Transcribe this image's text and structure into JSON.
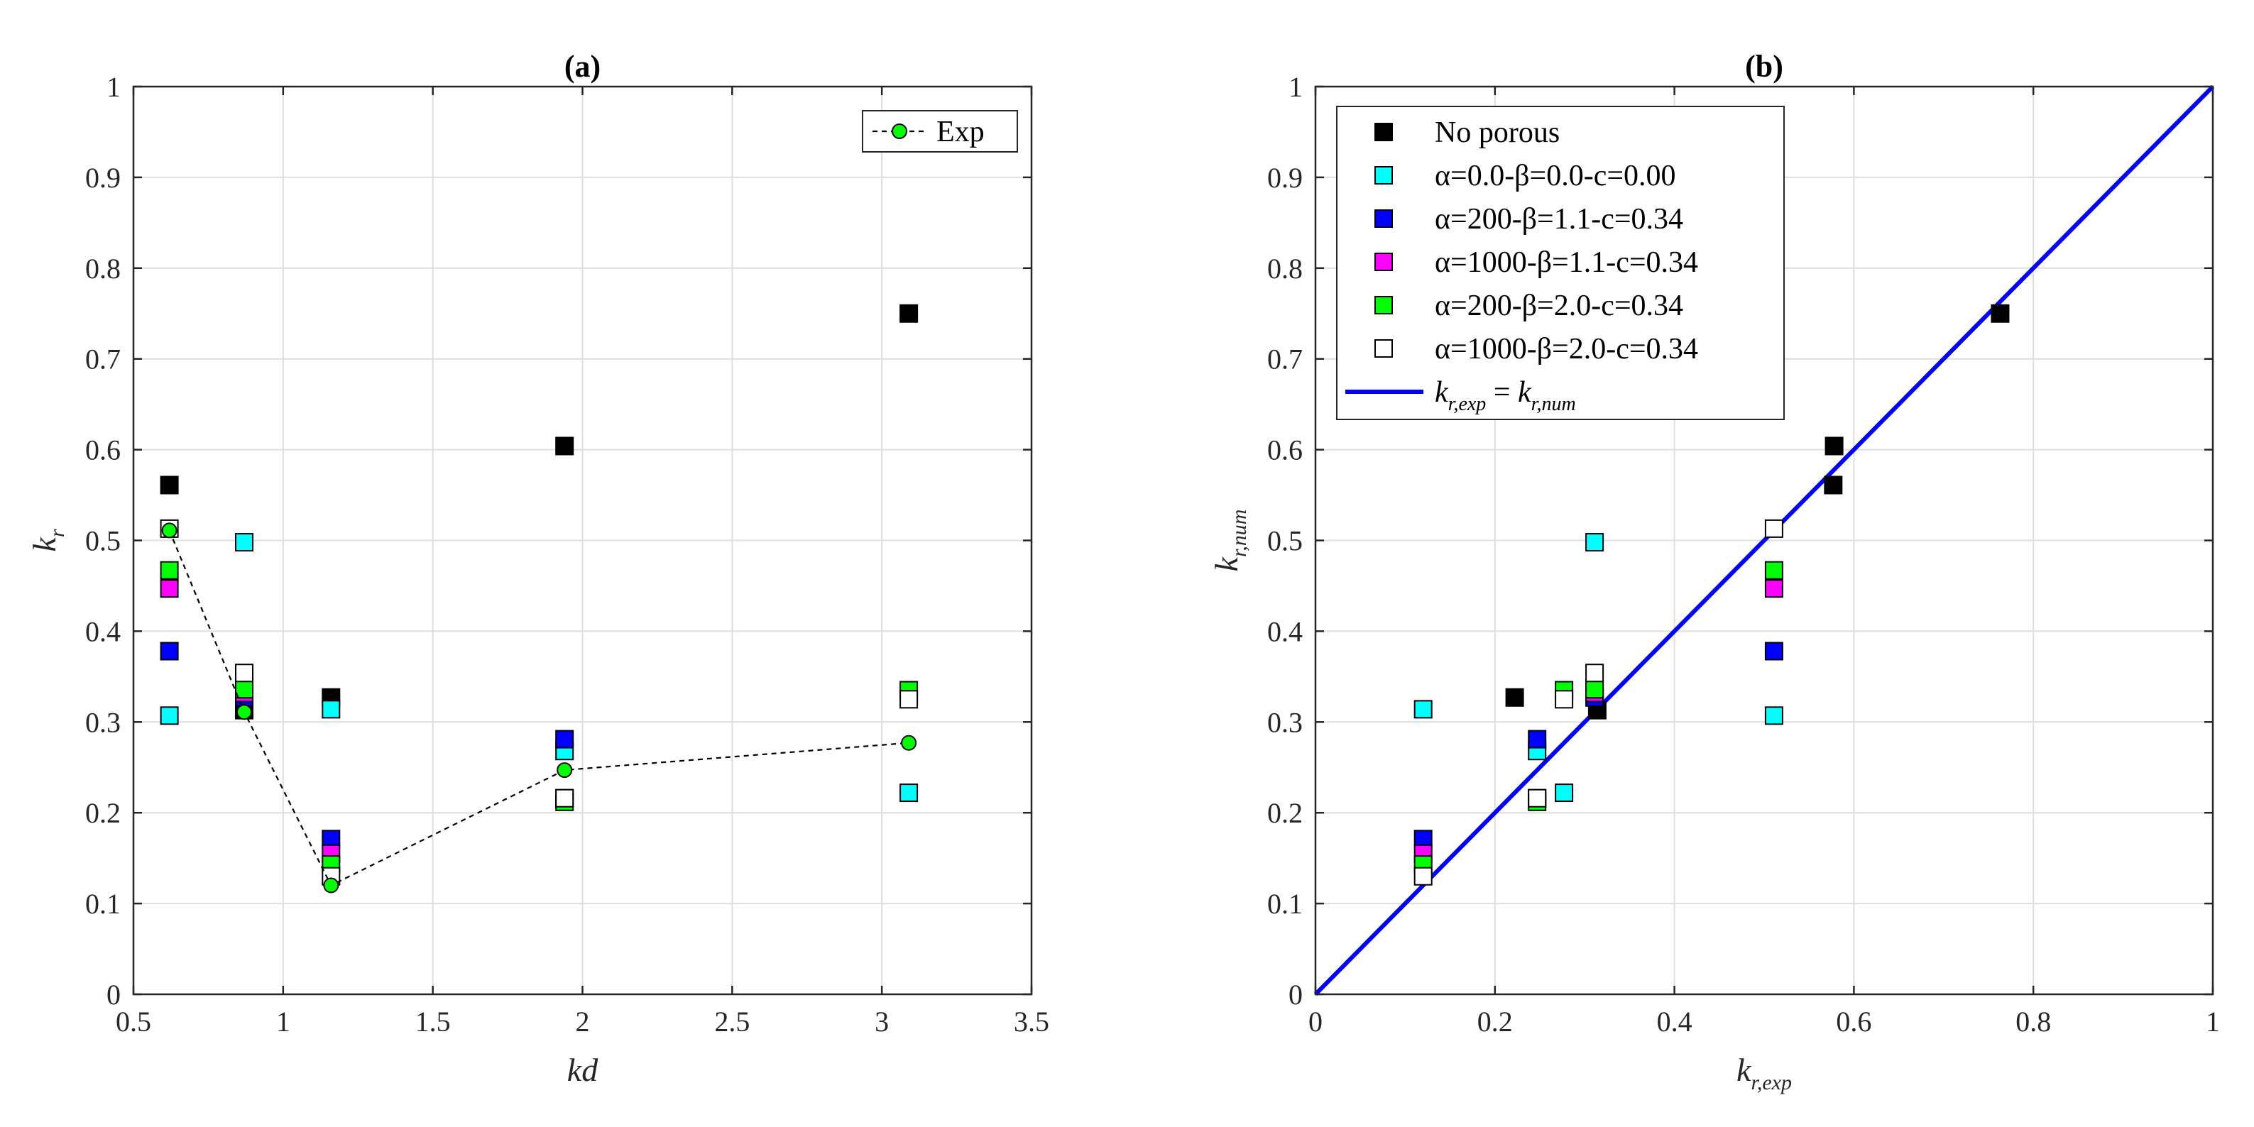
{
  "chart_data": [
    {
      "panel": "a",
      "type": "scatter",
      "title": "(a)",
      "xlabel": "kd",
      "ylabel": {
        "base": "k",
        "sub": "r"
      },
      "xlim": [
        0.5,
        3.5
      ],
      "ylim": [
        0,
        1
      ],
      "xticks": [
        0.5,
        1,
        1.5,
        2,
        2.5,
        3,
        3.5
      ],
      "xtick_labels": [
        "0.5",
        "1",
        "1.5",
        "2",
        "2.5",
        "3",
        "3.5"
      ],
      "yticks": [
        0,
        0.1,
        0.2,
        0.3,
        0.4,
        0.5,
        0.6,
        0.7,
        0.8,
        0.9,
        1
      ],
      "ytick_labels": [
        "0",
        "0.1",
        "0.2",
        "0.3",
        "0.4",
        "0.5",
        "0.6",
        "0.7",
        "0.8",
        "0.9",
        "1"
      ],
      "grid": true,
      "legend_position": "top-right",
      "legend": [
        {
          "label": "Exp",
          "marker": "circle",
          "color": "#00ff00",
          "line": "dashed"
        }
      ],
      "series": [
        {
          "name": "No porous",
          "marker": "square",
          "color": "#000000",
          "x": [
            0.62,
            0.87,
            1.16,
            1.94,
            3.09
          ],
          "y": [
            0.561,
            0.313,
            0.327,
            0.604,
            0.75
          ]
        },
        {
          "name": "α=0.0-β=0.0-c=0.00",
          "marker": "square",
          "color": "#00ffff",
          "x": [
            0.62,
            0.87,
            1.16,
            1.94,
            3.09
          ],
          "y": [
            0.307,
            0.498,
            0.314,
            0.268,
            0.222
          ]
        },
        {
          "name": "α=200-β=1.1-c=0.34",
          "marker": "square",
          "color": "#0000ff",
          "x": [
            0.62,
            0.87,
            1.16,
            1.94
          ],
          "y": [
            0.378,
            0.327,
            0.171,
            0.281
          ]
        },
        {
          "name": "α=1000-β=1.1-c=0.34",
          "marker": "square",
          "color": "#ff00ff",
          "x": [
            0.62,
            0.87,
            1.16,
            1.94
          ],
          "y": [
            0.447,
            0.332,
            0.155,
            0.216
          ]
        },
        {
          "name": "α=200-β=2.0-c=0.34",
          "marker": "square",
          "color": "#00ff00",
          "x": [
            0.62,
            0.87,
            1.16,
            1.94,
            3.09
          ],
          "y": [
            0.467,
            0.336,
            0.143,
            0.212,
            0.335
          ]
        },
        {
          "name": "α=1000-β=2.0-c=0.34",
          "marker": "square-open",
          "color": "#ffffff",
          "x": [
            0.62,
            0.87,
            1.16,
            1.94,
            3.09
          ],
          "y": [
            0.513,
            0.354,
            0.13,
            0.216,
            0.325
          ]
        },
        {
          "name": "Exp",
          "marker": "circle",
          "color": "#00ff00",
          "line": "dashed",
          "x": [
            0.62,
            0.87,
            1.16,
            1.94,
            3.09
          ],
          "y": [
            0.511,
            0.311,
            0.12,
            0.247,
            0.277
          ]
        }
      ]
    },
    {
      "panel": "b",
      "type": "scatter",
      "title": "(b)",
      "xlabel": {
        "base": "k",
        "sub": "r,exp"
      },
      "ylabel": {
        "base": "k",
        "sub": "r,num"
      },
      "xlim": [
        0,
        1
      ],
      "ylim": [
        0,
        1
      ],
      "xticks": [
        0,
        0.2,
        0.4,
        0.6,
        0.8,
        1
      ],
      "xtick_labels": [
        "0",
        "0.2",
        "0.4",
        "0.6",
        "0.8",
        "1"
      ],
      "yticks": [
        0,
        0.1,
        0.2,
        0.3,
        0.4,
        0.5,
        0.6,
        0.7,
        0.8,
        0.9,
        1
      ],
      "ytick_labels": [
        "0",
        "0.1",
        "0.2",
        "0.3",
        "0.4",
        "0.5",
        "0.6",
        "0.7",
        "0.8",
        "0.9",
        "1"
      ],
      "grid": true,
      "legend_position": "top-left",
      "legend": [
        {
          "label": "No porous",
          "marker": "square",
          "color": "#000000"
        },
        {
          "label": "α=0.0-β=0.0-c=0.00",
          "marker": "square",
          "color": "#00ffff"
        },
        {
          "label": "α=200-β=1.1-c=0.34",
          "marker": "square",
          "color": "#0000ff"
        },
        {
          "label": "α=1000-β=1.1-c=0.34",
          "marker": "square",
          "color": "#ff00ff"
        },
        {
          "label": "α=200-β=2.0-c=0.34",
          "marker": "square",
          "color": "#00ff00"
        },
        {
          "label": "α=1000-β=2.0-c=0.34",
          "marker": "square-open",
          "color": "#ffffff"
        },
        {
          "label": "k_r,exp = k_r,num",
          "marker": "line",
          "color": "#0000ff"
        }
      ],
      "reference_line": {
        "label": "k_r,exp = k_r,num",
        "x": [
          0,
          1
        ],
        "y": [
          0,
          1
        ],
        "color": "#0000ff"
      },
      "series": [
        {
          "name": "No porous",
          "marker": "square",
          "color": "#000000",
          "x": [
            0.577,
            0.222,
            0.314,
            0.578,
            0.763
          ],
          "y": [
            0.561,
            0.327,
            0.313,
            0.604,
            0.75
          ]
        },
        {
          "name": "α=0.0-β=0.0-c=0.00",
          "marker": "square",
          "color": "#00ffff",
          "x": [
            0.511,
            0.12,
            0.311,
            0.247,
            0.277
          ],
          "y": [
            0.307,
            0.314,
            0.498,
            0.268,
            0.222
          ]
        },
        {
          "name": "α=200-β=1.1-c=0.34",
          "marker": "square",
          "color": "#0000ff",
          "x": [
            0.511,
            0.311,
            0.12,
            0.247
          ],
          "y": [
            0.378,
            0.327,
            0.171,
            0.281
          ]
        },
        {
          "name": "α=1000-β=1.1-c=0.34",
          "marker": "square",
          "color": "#ff00ff",
          "x": [
            0.511,
            0.311,
            0.12,
            0.247
          ],
          "y": [
            0.447,
            0.332,
            0.155,
            0.216
          ]
        },
        {
          "name": "α=200-β=2.0-c=0.34",
          "marker": "square",
          "color": "#00ff00",
          "x": [
            0.511,
            0.311,
            0.12,
            0.247,
            0.277
          ],
          "y": [
            0.467,
            0.336,
            0.143,
            0.212,
            0.335
          ]
        },
        {
          "name": "α=1000-β=2.0-c=0.34",
          "marker": "square-open",
          "color": "#ffffff",
          "x": [
            0.511,
            0.311,
            0.12,
            0.247,
            0.277
          ],
          "y": [
            0.513,
            0.354,
            0.13,
            0.216,
            0.325
          ]
        }
      ]
    }
  ]
}
